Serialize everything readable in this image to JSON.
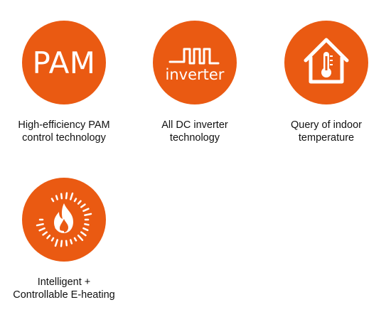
{
  "accent_color": "#ea5a12",
  "features": [
    {
      "icon": "pam-icon",
      "icon_text": "PAM",
      "caption_lines": [
        "High-efficiency PAM",
        "control technology"
      ]
    },
    {
      "icon": "inverter-icon",
      "icon_text": "inverter",
      "caption_lines": [
        "All DC inverter",
        "technology"
      ]
    },
    {
      "icon": "house-thermometer-icon",
      "caption_lines": [
        "Query of indoor",
        "temperature"
      ]
    },
    {
      "icon": "flame-heating-icon",
      "caption_lines": [
        "Intelligent +",
        "Controllable E-heating"
      ]
    }
  ]
}
